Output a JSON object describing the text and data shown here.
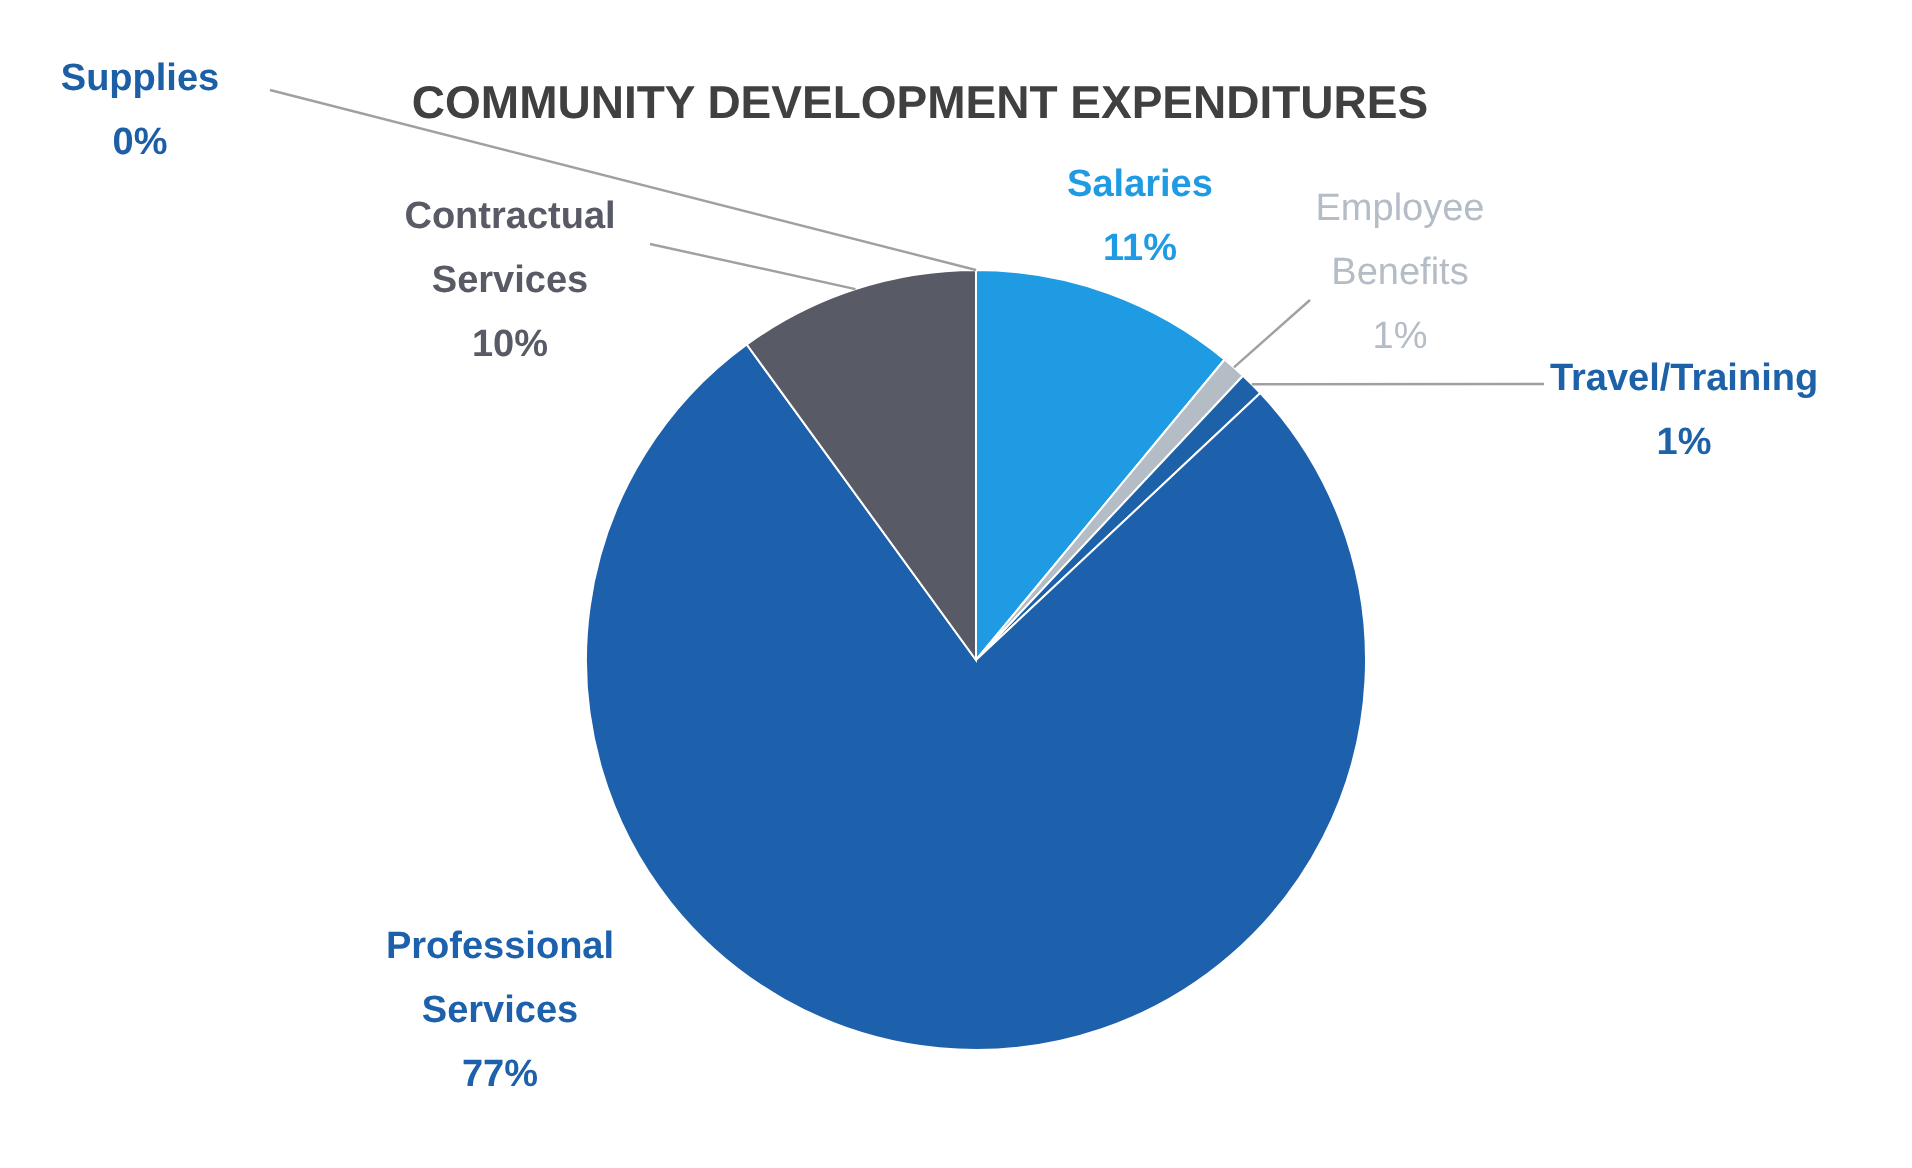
{
  "chart_data": {
    "type": "pie",
    "title": "COMMUNITY DEVELOPMENT EXPENDITURES",
    "categories": [
      "Salaries",
      "Employee Benefits",
      "Travel/Training",
      "Professional Services",
      "Contractual Services",
      "Supplies"
    ],
    "values": [
      11,
      1,
      1,
      77,
      10,
      0
    ],
    "value_labels": [
      "11%",
      "1%",
      "1%",
      "77%",
      "10%",
      "0%"
    ],
    "colors": [
      "#1f9be3",
      "#b4bcc6",
      "#1d62a8",
      "#1d60ab",
      "#585a66",
      "#1d5fa6"
    ]
  }
}
